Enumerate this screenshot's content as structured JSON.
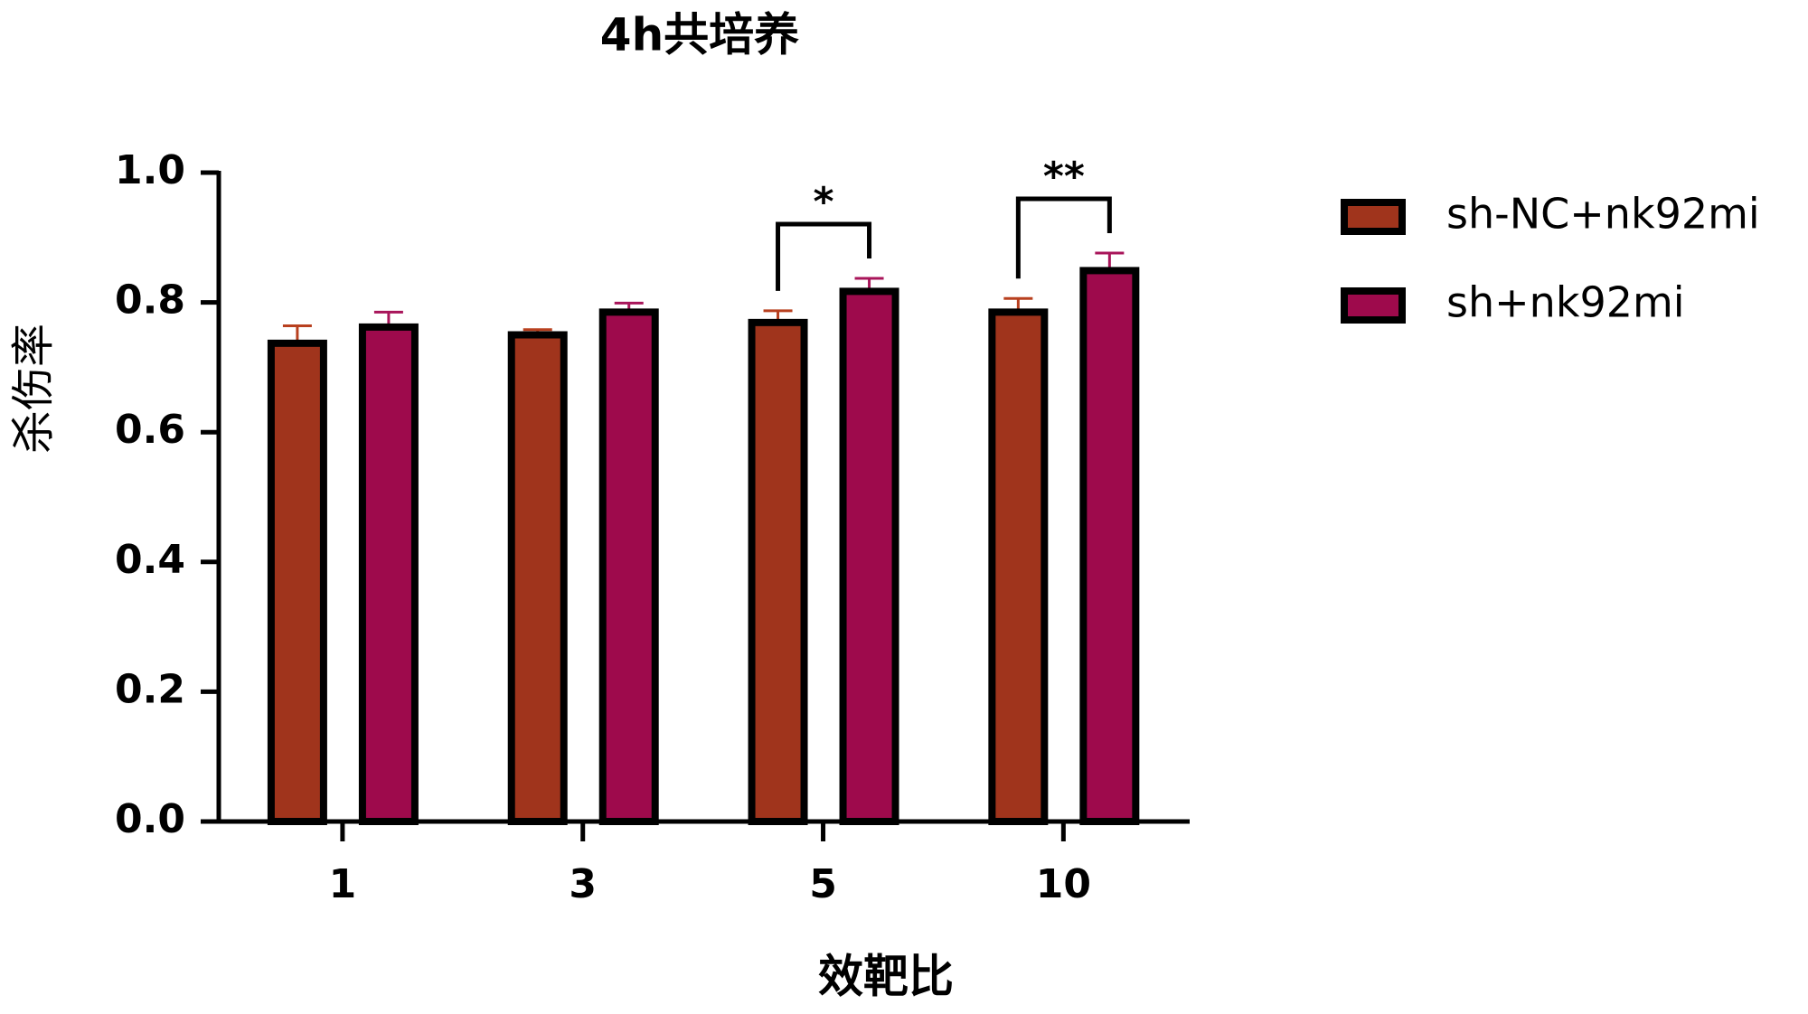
{
  "chart_data": {
    "type": "bar",
    "title": "4h共培养",
    "x_label": "效靶比",
    "y_label": "杀伤率",
    "categories": [
      "1",
      "3",
      "5",
      "10"
    ],
    "series": [
      {
        "name": "sh-NC+nk92mi",
        "color": "#a0341c",
        "error_color": "#b8401f",
        "values": [
          0.737,
          0.75,
          0.769,
          0.785
        ],
        "errors": [
          0.027,
          0.008,
          0.018,
          0.021
        ]
      },
      {
        "name": "sh+nk92mi",
        "color": "#9e0a4c",
        "error_color": "#a8155a",
        "values": [
          0.762,
          0.785,
          0.817,
          0.849
        ],
        "errors": [
          0.023,
          0.014,
          0.02,
          0.027
        ]
      }
    ],
    "annotations": [
      {
        "category": "5",
        "text": "*"
      },
      {
        "category": "10",
        "text": "**"
      }
    ],
    "ylim": [
      0,
      1
    ],
    "yticks": [
      {
        "value": 0,
        "label": "0.0"
      },
      0.2,
      0.4,
      0.6,
      0.8,
      {
        "value": 1,
        "label": "1.0"
      }
    ],
    "legend": "right"
  }
}
